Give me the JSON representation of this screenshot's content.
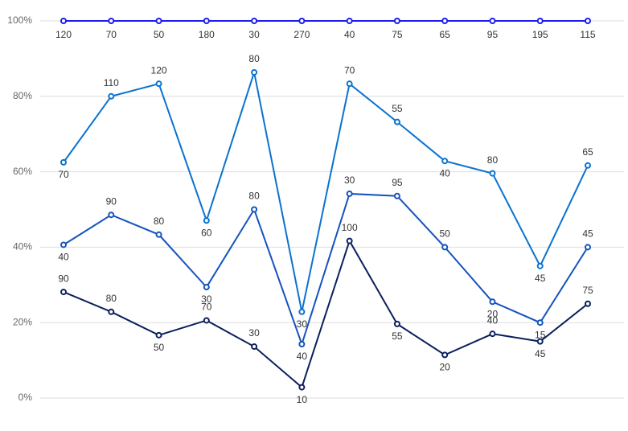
{
  "chart_data": {
    "type": "line",
    "stacking": "percent",
    "ylim": [
      0,
      100
    ],
    "yticks": [
      {
        "value": 0,
        "label": "0%"
      },
      {
        "value": 20,
        "label": "20%"
      },
      {
        "value": 40,
        "label": "40%"
      },
      {
        "value": 60,
        "label": "60%"
      },
      {
        "value": 80,
        "label": "80%"
      },
      {
        "value": 100,
        "label": "100%"
      }
    ],
    "grid": true,
    "series": [
      {
        "color": "#0b1f5e",
        "values": [
          90,
          80,
          50,
          70,
          30,
          10,
          100,
          55,
          20,
          40,
          45,
          75
        ]
      },
      {
        "color": "#1453bd",
        "values": [
          40,
          90,
          80,
          30,
          80,
          40,
          30,
          95,
          50,
          20,
          15,
          45
        ]
      },
      {
        "color": "#0a72d0",
        "values": [
          70,
          110,
          120,
          60,
          80,
          30,
          70,
          55,
          40,
          80,
          45,
          65
        ]
      },
      {
        "color": "#1c1cf0",
        "values": [
          120,
          70,
          50,
          180,
          30,
          270,
          40,
          75,
          65,
          95,
          195,
          115
        ]
      }
    ]
  }
}
